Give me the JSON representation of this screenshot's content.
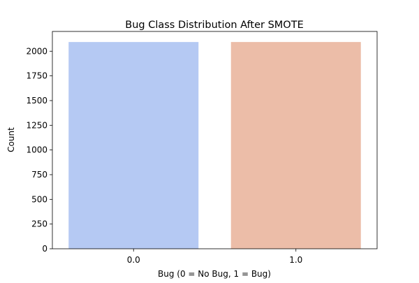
{
  "chart_data": {
    "type": "bar",
    "title": "Bug Class Distribution After SMOTE",
    "xlabel": "Bug (0 = No Bug, 1 = Bug)",
    "ylabel": "Count",
    "categories": [
      "0.0",
      "1.0"
    ],
    "values": [
      2093,
      2093
    ],
    "colors": [
      "#b5c9f3",
      "#ecbda8"
    ],
    "ylim": [
      0,
      2200
    ],
    "yticks": [
      0,
      250,
      500,
      750,
      1000,
      1250,
      1500,
      1750,
      2000
    ],
    "grid": false,
    "legend": "none"
  }
}
